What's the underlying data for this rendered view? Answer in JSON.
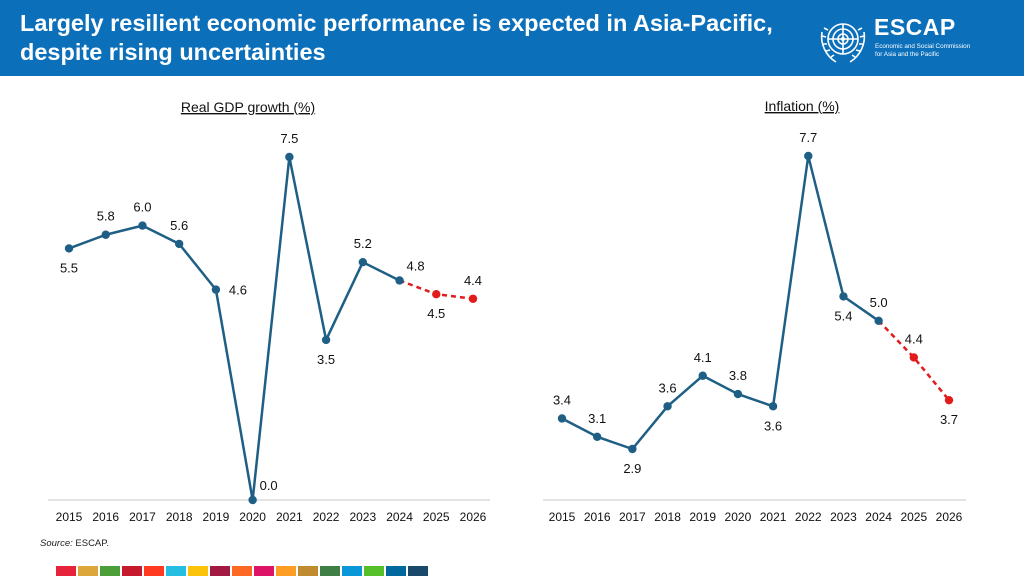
{
  "header": {
    "title": "Largely resilient economic performance is expected in Asia-Pacific, despite rising uncertainties"
  },
  "logo": {
    "wordmark": "ESCAP",
    "subtitle_line1": "Economic and Social Commission",
    "subtitle_line2": "for Asia and the Pacific"
  },
  "source": {
    "label": "Source:",
    "text": "ESCAP."
  },
  "colors": {
    "header_bg": "#0b6fba",
    "actual_line": "#1f5f85",
    "forecast_line": "#e31b1b",
    "axis": "#c8c8c8"
  },
  "sdg_colors": [
    "#e5243b",
    "#dda63a",
    "#4c9f38",
    "#c5192d",
    "#ff3a21",
    "#26bde2",
    "#fcc30b",
    "#a21942",
    "#fd6925",
    "#dd1367",
    "#fd9d24",
    "#bf8b2e",
    "#3f7e44",
    "#0a97d9",
    "#56c02b",
    "#00689d",
    "#19486a"
  ],
  "chart_data": [
    {
      "type": "line",
      "title": "Real GDP growth (%)",
      "categories": [
        "2015",
        "2016",
        "2017",
        "2018",
        "2019",
        "2020",
        "2021",
        "2022",
        "2023",
        "2024",
        "2025",
        "2026"
      ],
      "values": [
        5.5,
        5.8,
        6.0,
        5.6,
        4.6,
        0.0,
        7.5,
        3.5,
        5.2,
        4.8,
        4.5,
        4.4
      ],
      "labels": [
        "5.5",
        "5.8",
        "6.0",
        "5.6",
        "4.6",
        "0.0",
        "7.5",
        "3.5",
        "5.2",
        "4.8",
        "4.5",
        "4.4"
      ],
      "label_positions": [
        "below",
        "above",
        "above",
        "above",
        "right",
        "above-right",
        "above",
        "below",
        "above",
        "above-right",
        "below",
        "above"
      ],
      "forecast_start_index": 9,
      "ylim": [
        0,
        8
      ],
      "xlabel": "",
      "ylabel": ""
    },
    {
      "type": "line",
      "title": "Inflation (%)",
      "categories": [
        "2015",
        "2016",
        "2017",
        "2018",
        "2019",
        "2020",
        "2021",
        "2022",
        "2023",
        "2024",
        "2025",
        "2026"
      ],
      "values": [
        3.4,
        3.1,
        2.9,
        3.6,
        4.1,
        3.8,
        3.6,
        7.7,
        5.4,
        5.0,
        4.4,
        3.7
      ],
      "labels": [
        "3.4",
        "3.1",
        "2.9",
        "3.6",
        "4.1",
        "3.8",
        "3.6",
        "7.7",
        "5.4",
        "5.0",
        "4.4",
        "3.7"
      ],
      "label_positions": [
        "above",
        "above",
        "below",
        "above",
        "above",
        "above",
        "below",
        "above",
        "below",
        "above",
        "above",
        "below"
      ],
      "forecast_start_index": 9,
      "ylim": [
        2.0,
        8.0
      ],
      "xlabel": "",
      "ylabel": ""
    }
  ]
}
